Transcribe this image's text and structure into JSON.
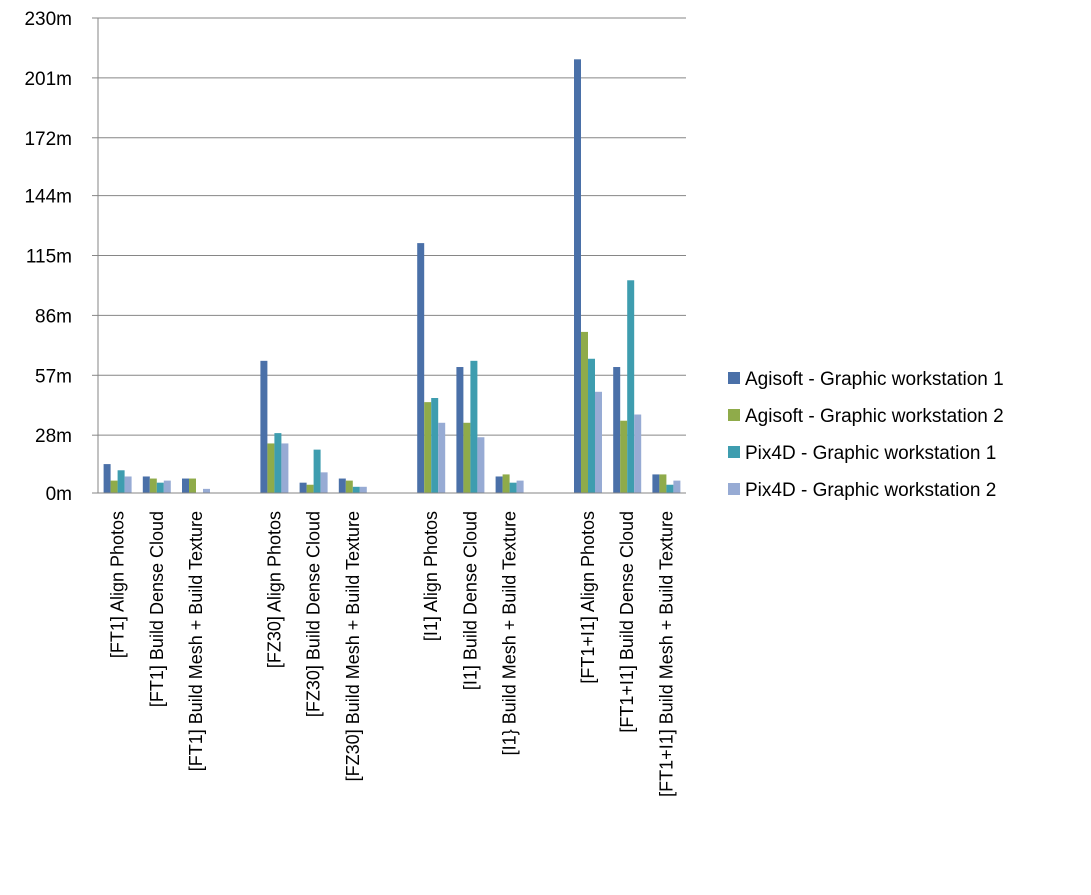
{
  "chart_data": {
    "type": "bar",
    "title": "",
    "xlabel": "",
    "ylabel": "",
    "ylim": [
      0,
      230
    ],
    "yticks": [
      0,
      28,
      57,
      86,
      115,
      144,
      172,
      201,
      230
    ],
    "ytick_labels": [
      "0m",
      "28m",
      "57m",
      "86m",
      "115m",
      "144m",
      "172m",
      "201m",
      "230m"
    ],
    "grid": true,
    "legend_position": "right",
    "groups": [
      [
        "[FT1] Align Photos",
        "[FT1] Build Dense Cloud",
        "[FT1] Build Mesh + Build Texture"
      ],
      [
        "[FZ30] Align Photos",
        "[FZ30] Build Dense Cloud",
        "[FZ30] Build Mesh + Build Texture"
      ],
      [
        "[I1] Align Photos",
        "[I1] Build Dense Cloud",
        "[I1} Build Mesh + Build Texture"
      ],
      [
        "[FT1+I1] Align Photos",
        "[FT1+I1] Build Dense Cloud",
        "[FT1+I1] Build Mesh + Build Texture"
      ]
    ],
    "categories": [
      "[FT1] Align Photos",
      "[FT1] Build Dense Cloud",
      "[FT1] Build Mesh + Build Texture",
      "[FZ30] Align Photos",
      "[FZ30] Build Dense Cloud",
      "[FZ30] Build Mesh + Build Texture",
      "[I1] Align Photos",
      "[I1] Build Dense Cloud",
      "[I1} Build Mesh + Build Texture",
      "[FT1+I1] Align Photos",
      "[FT1+I1] Build Dense Cloud",
      "[FT1+I1] Build Mesh + Build Texture"
    ],
    "series": [
      {
        "name": "Agisoft - Graphic workstation 1",
        "color": "#4a70a8",
        "values": [
          14,
          8,
          7,
          64,
          5,
          7,
          121,
          61,
          8,
          210,
          61,
          9
        ]
      },
      {
        "name": "Agisoft - Graphic workstation 2",
        "color": "#8fab4a",
        "values": [
          6,
          7,
          7,
          24,
          4,
          6,
          44,
          34,
          9,
          78,
          35,
          9
        ]
      },
      {
        "name": "Pix4D - Graphic workstation 1",
        "color": "#3e9daf",
        "values": [
          11,
          5,
          0,
          29,
          21,
          3,
          46,
          64,
          5,
          65,
          103,
          4
        ]
      },
      {
        "name": "Pix4D - Graphic workstation 2",
        "color": "#97abd4",
        "values": [
          8,
          6,
          2,
          24,
          10,
          3,
          34,
          27,
          6,
          49,
          38,
          6
        ]
      }
    ]
  }
}
